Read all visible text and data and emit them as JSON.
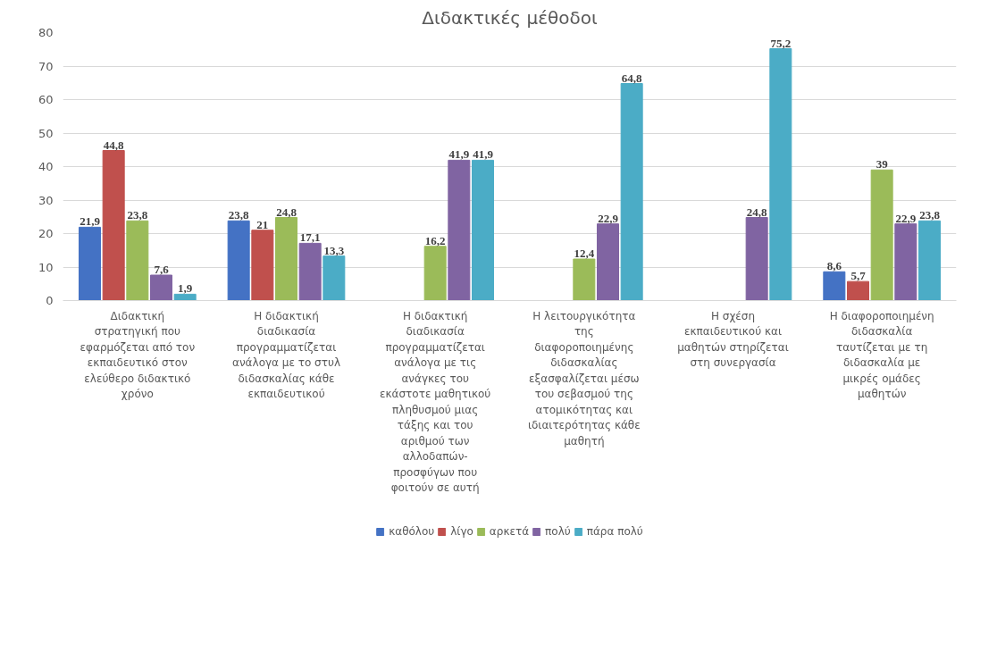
{
  "chart_data": {
    "type": "bar",
    "title": "Διδακτικές μέθοδοι",
    "categories": [
      "Διδακτική στρατηγική που εφαρμόζεται από τον εκπαιδευτικό στον ελεύθερο διδακτικό χρόνο",
      "Η διδακτική διαδικασία προγραμματίζεται ανάλογα με το στυλ διδασκαλίας κάθε εκπαιδευτικού",
      "Η διδακτική διαδικασία προγραμματίζεται ανάλογα με τις ανάγκες του εκάστοτε μαθητικού πληθυσμού μιας τάξης και του αριθμού των αλλοδαπών- προσφύγων που φοιτούν σε αυτή",
      "Η λειτουργικότητα της διαφοροποιημένης διδασκαλίας εξασφαλίζεται μέσω του σεβασμού της ατομικότητας και ιδιαιτερότητας κάθε μαθητή",
      "Η σχέση εκπαιδευτικού και μαθητών στηρίζεται στη συνεργασία",
      "Η διαφοροποιημένη διδασκαλία ταυτίζεται με τη διδασκαλία με μικρές ομάδες μαθητών"
    ],
    "series": [
      {
        "name": "καθόλου",
        "color": "#4472c4",
        "values": [
          21.9,
          23.8,
          null,
          null,
          null,
          8.6
        ],
        "value_labels": [
          "21,9",
          "23,8",
          null,
          null,
          null,
          "8,6"
        ]
      },
      {
        "name": "λίγο",
        "color": "#c0504d",
        "values": [
          44.8,
          21,
          null,
          null,
          null,
          5.7
        ],
        "value_labels": [
          "44,8",
          "21",
          null,
          null,
          null,
          "5,7"
        ]
      },
      {
        "name": "αρκετά",
        "color": "#9bbb59",
        "values": [
          23.8,
          24.8,
          16.2,
          12.4,
          null,
          39
        ],
        "value_labels": [
          "23,8",
          "24,8",
          "16,2",
          "12,4",
          null,
          "39"
        ]
      },
      {
        "name": "πολύ",
        "color": "#8064a2",
        "values": [
          7.6,
          17.1,
          41.9,
          22.9,
          24.8,
          22.9
        ],
        "value_labels": [
          "7,6",
          "17,1",
          "41,9",
          "22,9",
          "24,8",
          "22,9"
        ]
      },
      {
        "name": "πάρα πολύ",
        "color": "#4bacc6",
        "values": [
          1.9,
          13.3,
          41.9,
          64.8,
          75.2,
          23.8
        ],
        "value_labels": [
          "1,9",
          "13,3",
          "41,9",
          "64,8",
          "75,2",
          "23,8"
        ]
      }
    ],
    "ylim": [
      0,
      80
    ],
    "yticks": [
      0,
      10,
      20,
      30,
      40,
      50,
      60,
      70,
      80
    ],
    "grid": "y",
    "legend": "bottom"
  }
}
